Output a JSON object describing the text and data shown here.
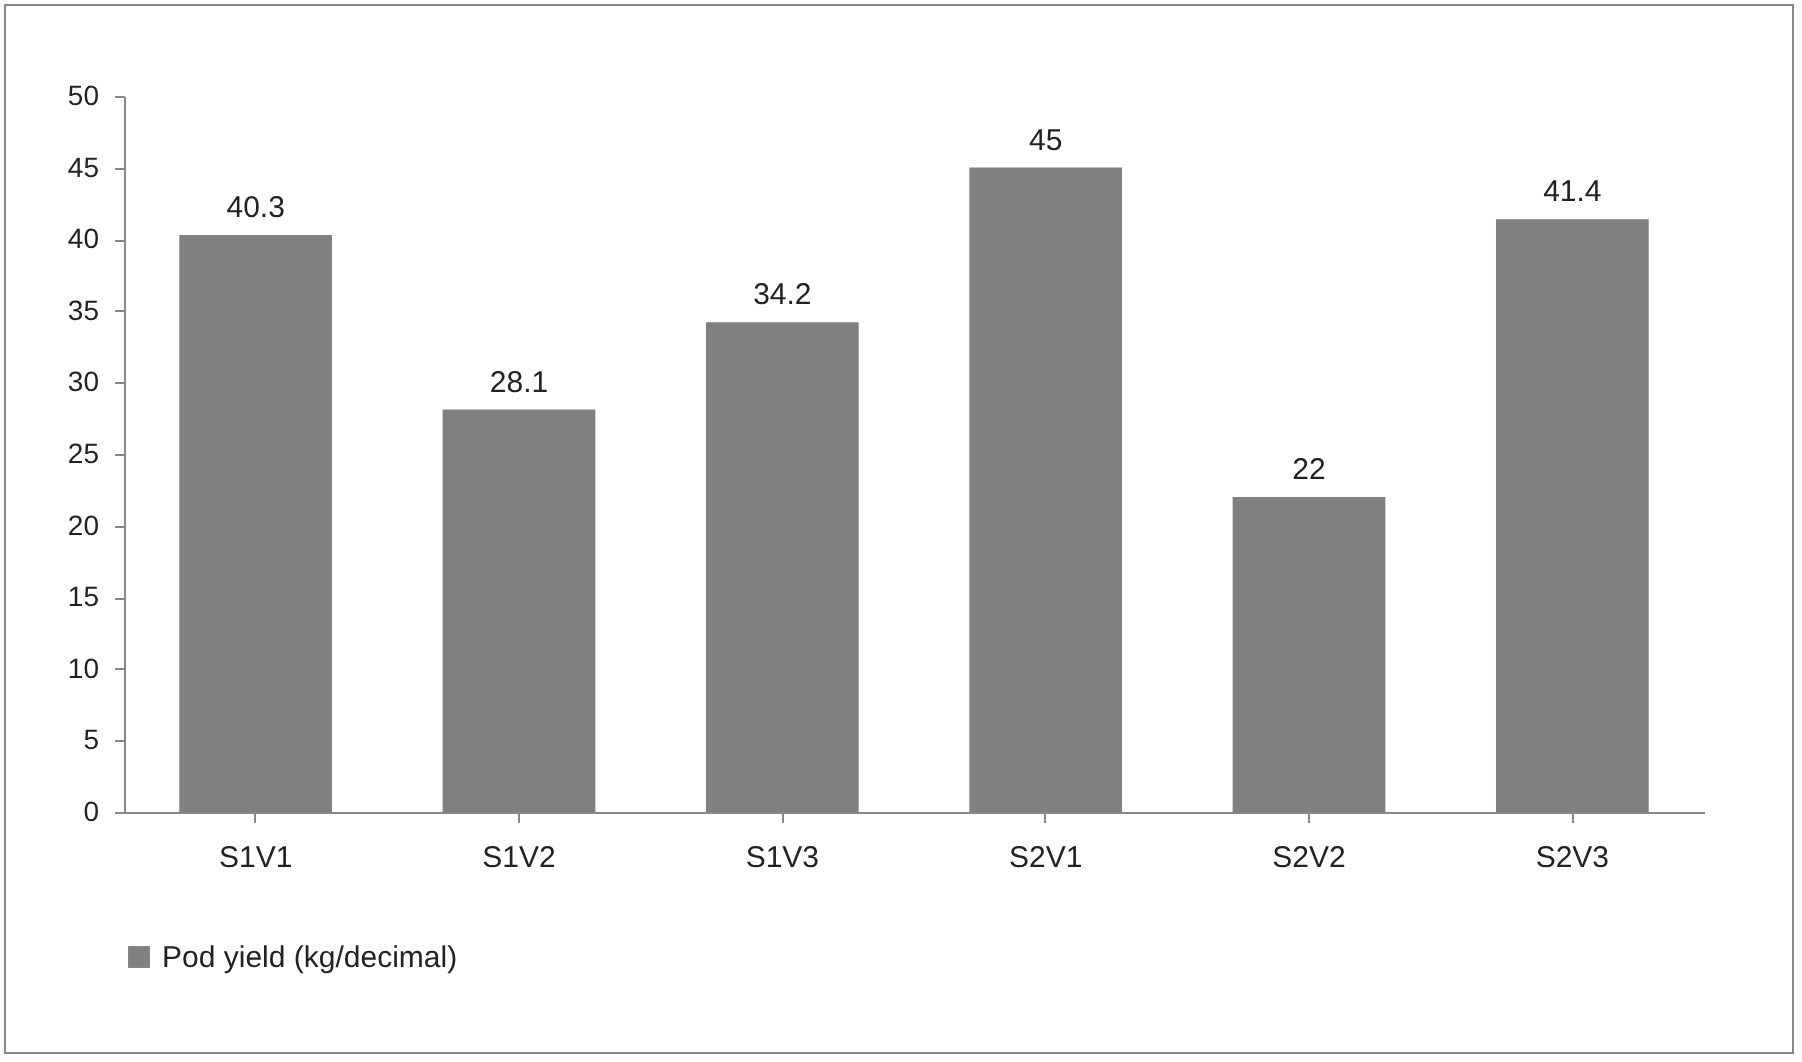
{
  "chart_data": {
    "type": "bar",
    "categories": [
      "S1V1",
      "S1V2",
      "S1V3",
      "S2V1",
      "S2V2",
      "S2V3"
    ],
    "series": [
      {
        "name": "Pod yield (kg/decimal)",
        "color": "#808080",
        "values": [
          40.3,
          28.1,
          34.2,
          45,
          22,
          41.4
        ]
      }
    ],
    "ylim": [
      0,
      50
    ],
    "yticks": [
      0,
      5,
      10,
      15,
      20,
      25,
      30,
      35,
      40,
      45,
      50
    ],
    "grid": false,
    "legend": "bottom",
    "data_labels": true
  }
}
